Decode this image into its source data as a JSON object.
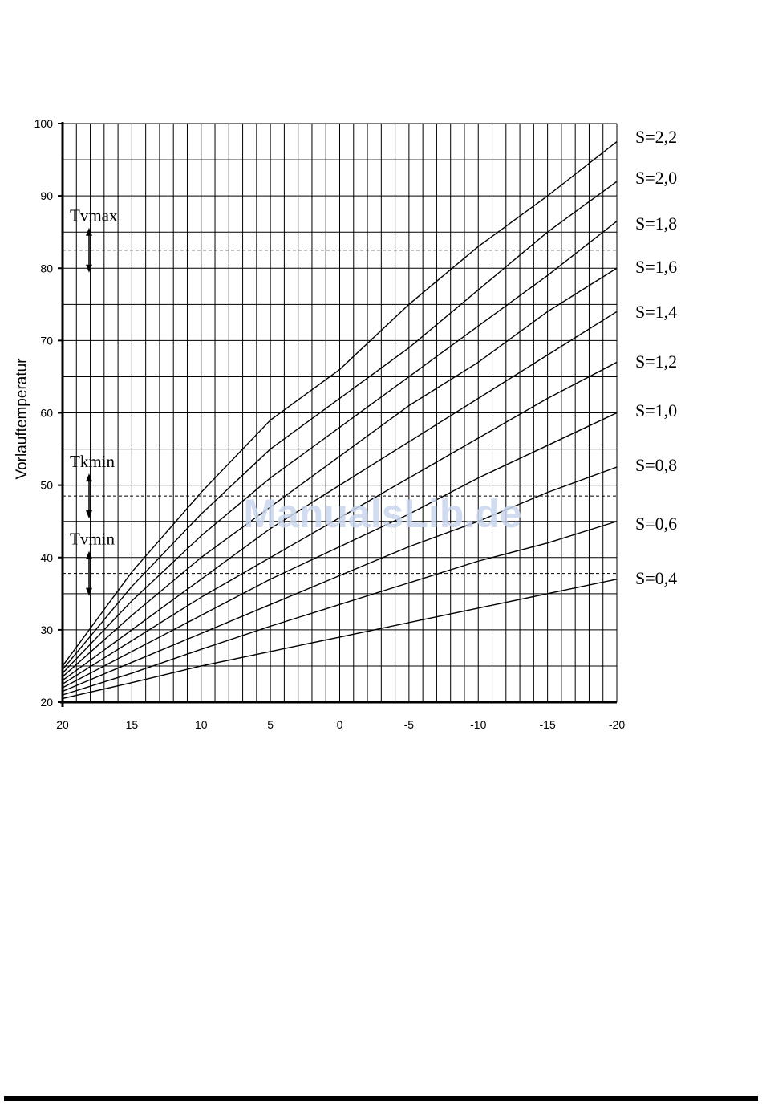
{
  "chart_data": {
    "type": "line",
    "xlabel": "",
    "ylabel": "Vorlauftemperatur",
    "xlim": [
      20,
      -20
    ],
    "ylim": [
      20,
      100
    ],
    "x_ticks": [
      20,
      15,
      10,
      5,
      0,
      -5,
      -10,
      -15,
      -20
    ],
    "y_ticks": [
      20,
      30,
      40,
      50,
      60,
      70,
      80,
      90,
      100
    ],
    "grid": true,
    "x": [
      20,
      15,
      10,
      5,
      0,
      -5,
      -10,
      -15,
      -20
    ],
    "series": [
      {
        "name": "S=2,2",
        "values": [
          25,
          38,
          49,
          59,
          66,
          75,
          83,
          90,
          97.5
        ]
      },
      {
        "name": "S=2,0",
        "values": [
          24.5,
          36,
          46,
          55,
          62,
          69,
          77,
          85,
          92
        ]
      },
      {
        "name": "S=1,8",
        "values": [
          24,
          34,
          43,
          51,
          58,
          65,
          72,
          79,
          86.5
        ]
      },
      {
        "name": "S=1,6",
        "values": [
          23.5,
          32,
          40,
          47,
          54,
          61,
          67,
          74,
          80
        ]
      },
      {
        "name": "S=1,4",
        "values": [
          23,
          30,
          37,
          44,
          50,
          56,
          62,
          68,
          74
        ]
      },
      {
        "name": "S=1,2",
        "values": [
          22.5,
          28.5,
          34.5,
          40,
          45.5,
          51,
          56.5,
          62,
          67
        ]
      },
      {
        "name": "S=1,0",
        "values": [
          22,
          27,
          32,
          37,
          41.5,
          46,
          51,
          55.5,
          60
        ]
      },
      {
        "name": "S=0,8",
        "values": [
          21.5,
          25.5,
          29.5,
          33.5,
          37.5,
          41.5,
          45,
          49,
          52.5
        ]
      },
      {
        "name": "S=0,6",
        "values": [
          21,
          24,
          27.3,
          30.5,
          33.5,
          36.5,
          39.5,
          42,
          45
        ]
      },
      {
        "name": "S=0,4",
        "values": [
          20.5,
          22.7,
          25,
          27,
          29,
          31,
          33,
          35,
          37
        ]
      }
    ],
    "markers": [
      {
        "label": "Tvmax",
        "value": 82.5
      },
      {
        "label": "Tkmin",
        "value": 48.5
      },
      {
        "label": "Tvmin",
        "value": 37.8
      }
    ],
    "watermark": "ManualsLib.de"
  }
}
